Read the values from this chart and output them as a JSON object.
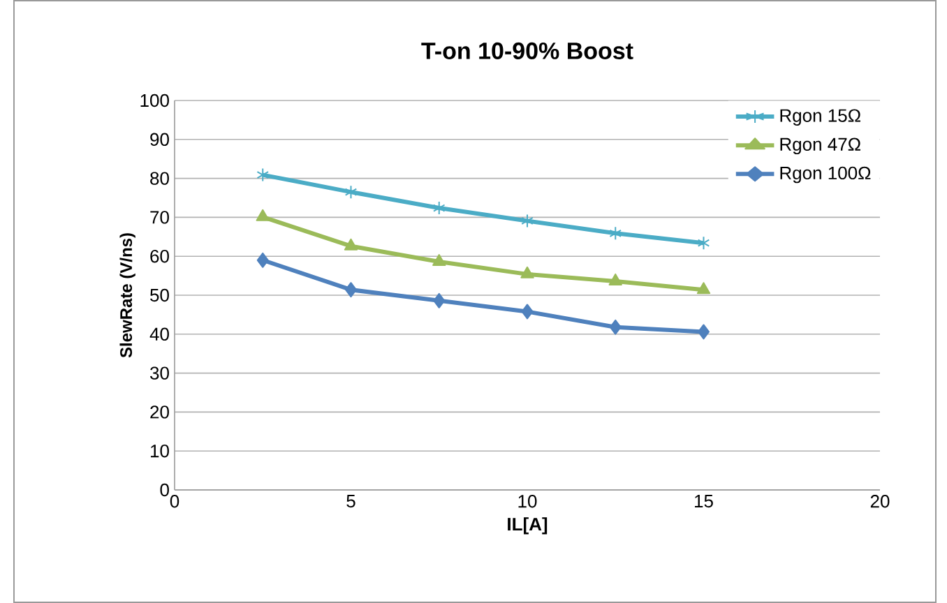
{
  "chart_data": {
    "type": "line",
    "title": "T-on 10-90% Boost",
    "xlabel": "IL[A]",
    "ylabel": "SlewRate (V/ns)",
    "x": [
      2.5,
      5,
      7.5,
      10,
      12.5,
      15
    ],
    "series": [
      {
        "name": "Rgon 15Ω",
        "color": "#4bacc6",
        "marker": "cross",
        "values": [
          80.9,
          76.5,
          72.4,
          69.1,
          65.9,
          63.4
        ]
      },
      {
        "name": "Rgon 47Ω",
        "color": "#9bbb59",
        "marker": "triangle",
        "values": [
          70.1,
          62.6,
          58.6,
          55.4,
          53.6,
          51.4
        ]
      },
      {
        "name": "Rgon 100Ω",
        "color": "#4f81bd",
        "marker": "diamond",
        "values": [
          59.0,
          51.4,
          48.6,
          45.8,
          41.8,
          40.6
        ]
      }
    ],
    "xlim": [
      0,
      20
    ],
    "xticks": [
      0,
      5,
      10,
      15,
      20
    ],
    "ylim": [
      0,
      100
    ],
    "yticks": [
      0,
      10,
      20,
      30,
      40,
      50,
      60,
      70,
      80,
      90,
      100
    ],
    "grid": "y",
    "legend": "top right",
    "line_style": "solid"
  }
}
